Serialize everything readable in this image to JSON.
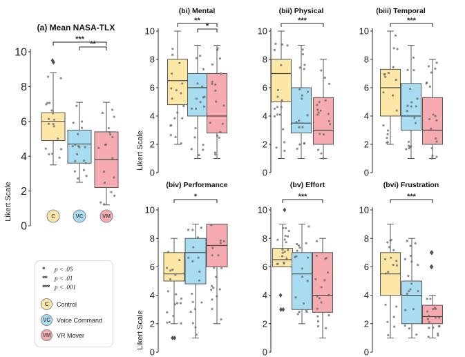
{
  "ylabel": "Likert Scale",
  "colors": {
    "C": "#fde7a6",
    "VC": "#a8dcf0",
    "VM": "#f6abb0"
  },
  "groups": [
    {
      "key": "C",
      "badge": "C",
      "label": "Control"
    },
    {
      "key": "VC",
      "badge": "VC",
      "label": "Voice Command"
    },
    {
      "key": "VM",
      "badge": "VM",
      "label": "VR Mover"
    }
  ],
  "legend": {
    "sig": [
      {
        "dots": "*",
        "text": "p < .05"
      },
      {
        "dots": "**",
        "text": "p < .01"
      },
      {
        "dots": "***",
        "text": "p < .001"
      }
    ]
  },
  "chart_data": [
    {
      "id": "a",
      "type": "box",
      "title": "(a) Mean NASA-TLX",
      "ylim": [
        0,
        10
      ],
      "yticks": [
        0,
        2,
        4,
        6,
        8,
        10
      ],
      "boxes": [
        {
          "group": "C",
          "q1": 4.9,
          "median": 6.0,
          "q3": 6.5,
          "whisker_low": 3.5,
          "whisker_high": 8.8,
          "outliers": [
            9.4,
            9.5
          ]
        },
        {
          "group": "VC",
          "q1": 3.6,
          "median": 4.7,
          "q3": 5.5,
          "whisker_low": 2.5,
          "whisker_high": 7.1,
          "outliers": []
        },
        {
          "group": "VM",
          "q1": 2.2,
          "median": 3.8,
          "q3": 5.4,
          "whisker_low": 1.2,
          "whisker_high": 7.1,
          "outliers": []
        }
      ],
      "significance": [
        {
          "from": "C",
          "to": "VM",
          "label": "***"
        },
        {
          "from": "VC",
          "to": "VM",
          "label": "**"
        }
      ]
    },
    {
      "id": "bi",
      "type": "box",
      "title": "(bi) Mental",
      "ylim": [
        0,
        10
      ],
      "yticks": [
        0,
        2,
        4,
        6,
        8,
        10
      ],
      "boxes": [
        {
          "group": "C",
          "q1": 4.8,
          "median": 6.5,
          "q3": 8.0,
          "whisker_low": 2.0,
          "whisker_high": 10.0,
          "outliers": []
        },
        {
          "group": "VC",
          "q1": 4.0,
          "median": 6.0,
          "q3": 7.0,
          "whisker_low": 1.0,
          "whisker_high": 9.0,
          "outliers": []
        },
        {
          "group": "VM",
          "q1": 2.8,
          "median": 4.0,
          "q3": 7.0,
          "whisker_low": 1.0,
          "whisker_high": 9.0,
          "outliers": []
        }
      ],
      "significance": [
        {
          "from": "C",
          "to": "VM",
          "label": "**"
        },
        {
          "from": "VC",
          "to": "VM",
          "label": "*"
        }
      ]
    },
    {
      "id": "bii",
      "type": "box",
      "title": "(bii) Physical",
      "ylim": [
        0,
        10
      ],
      "yticks": [
        0,
        2,
        4,
        6,
        8,
        10
      ],
      "boxes": [
        {
          "group": "C",
          "q1": 5.0,
          "median": 7.0,
          "q3": 8.0,
          "whisker_low": 1.0,
          "whisker_high": 10.0,
          "outliers": []
        },
        {
          "group": "VC",
          "q1": 2.8,
          "median": 3.5,
          "q3": 6.0,
          "whisker_low": 1.0,
          "whisker_high": 9.0,
          "outliers": []
        },
        {
          "group": "VM",
          "q1": 2.0,
          "median": 3.0,
          "q3": 5.3,
          "whisker_low": 1.0,
          "whisker_high": 8.0,
          "outliers": []
        }
      ],
      "significance": [
        {
          "from": "C",
          "to": "VM",
          "label": "***"
        }
      ]
    },
    {
      "id": "biii",
      "type": "box",
      "title": "(biii) Temporal",
      "ylim": [
        0,
        10
      ],
      "yticks": [
        0,
        2,
        4,
        6,
        8,
        10
      ],
      "boxes": [
        {
          "group": "C",
          "q1": 4.0,
          "median": 6.0,
          "q3": 7.3,
          "whisker_low": 2.0,
          "whisker_high": 10.0,
          "outliers": []
        },
        {
          "group": "VC",
          "q1": 3.0,
          "median": 4.0,
          "q3": 6.3,
          "whisker_low": 1.0,
          "whisker_high": 9.0,
          "outliers": []
        },
        {
          "group": "VM",
          "q1": 2.0,
          "median": 3.0,
          "q3": 5.3,
          "whisker_low": 1.0,
          "whisker_high": 8.0,
          "outliers": []
        }
      ],
      "significance": [
        {
          "from": "C",
          "to": "VM",
          "label": "***"
        }
      ]
    },
    {
      "id": "biv",
      "type": "box",
      "title": "(biv) Performance",
      "ylim": [
        0,
        10
      ],
      "yticks": [
        0,
        2,
        4,
        6,
        8,
        10
      ],
      "boxes": [
        {
          "group": "C",
          "q1": 5.0,
          "median": 5.5,
          "q3": 7.0,
          "whisker_low": 2.0,
          "whisker_high": 8.0,
          "outliers": [
            1.0,
            1.0
          ]
        },
        {
          "group": "VC",
          "q1": 4.8,
          "median": 7.0,
          "q3": 8.0,
          "whisker_low": 1.0,
          "whisker_high": 9.0,
          "outliers": []
        },
        {
          "group": "VM",
          "q1": 6.0,
          "median": 7.5,
          "q3": 9.0,
          "whisker_low": 2.0,
          "whisker_high": 9.0,
          "outliers": []
        }
      ],
      "significance": [
        {
          "from": "C",
          "to": "VM",
          "label": "*"
        }
      ]
    },
    {
      "id": "bv",
      "type": "box",
      "title": "(bv) Effort",
      "ylim": [
        0,
        10
      ],
      "yticks": [
        0,
        2,
        4,
        6,
        8,
        10
      ],
      "boxes": [
        {
          "group": "C",
          "q1": 6.0,
          "median": 6.5,
          "q3": 7.3,
          "whisker_low": 6.0,
          "whisker_high": 9.0,
          "outliers": [
            10.0,
            4.0,
            3.0,
            3.0
          ]
        },
        {
          "group": "VC",
          "q1": 3.0,
          "median": 5.5,
          "q3": 7.0,
          "whisker_low": 2.0,
          "whisker_high": 9.0,
          "outliers": []
        },
        {
          "group": "VM",
          "q1": 2.8,
          "median": 4.0,
          "q3": 7.0,
          "whisker_low": 1.0,
          "whisker_high": 8.0,
          "outliers": []
        }
      ],
      "significance": [
        {
          "from": "C",
          "to": "VM",
          "label": "***"
        }
      ]
    },
    {
      "id": "bvi",
      "type": "box",
      "title": "(bvi) Frustration",
      "ylim": [
        0,
        10
      ],
      "yticks": [
        0,
        2,
        4,
        6,
        8,
        10
      ],
      "boxes": [
        {
          "group": "C",
          "q1": 4.0,
          "median": 5.5,
          "q3": 7.0,
          "whisker_low": 1.0,
          "whisker_high": 9.0,
          "outliers": []
        },
        {
          "group": "VC",
          "q1": 2.0,
          "median": 4.0,
          "q3": 5.0,
          "whisker_low": 1.0,
          "whisker_high": 8.0,
          "outliers": []
        },
        {
          "group": "VM",
          "q1": 2.0,
          "median": 2.5,
          "q3": 3.3,
          "whisker_low": 1.0,
          "whisker_high": 4.0,
          "outliers": [
            7.0,
            7.0,
            6.0,
            6.0
          ]
        }
      ],
      "significance": [
        {
          "from": "C",
          "to": "VM",
          "label": "***"
        }
      ]
    }
  ]
}
